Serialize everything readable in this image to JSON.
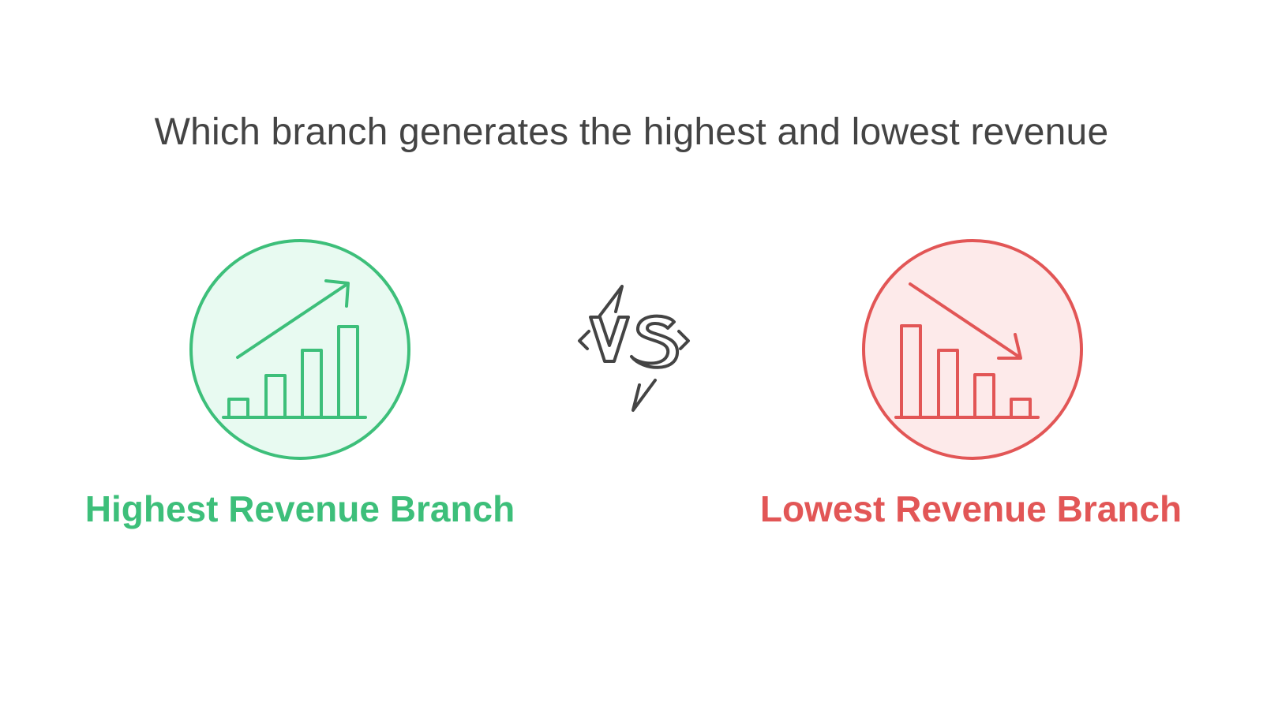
{
  "title": "Which branch generates the highest and lowest revenue",
  "left": {
    "label": "Highest Revenue Branch",
    "icon": "bar-chart-up-icon",
    "color": "#3dbf7a",
    "fill": "#e8faf1"
  },
  "vs": {
    "label": "VS",
    "icon": "versus-icon",
    "color": "#444444"
  },
  "right": {
    "label": "Lowest Revenue Branch",
    "icon": "bar-chart-down-icon",
    "color": "#e25656",
    "fill": "#fdeaea"
  }
}
